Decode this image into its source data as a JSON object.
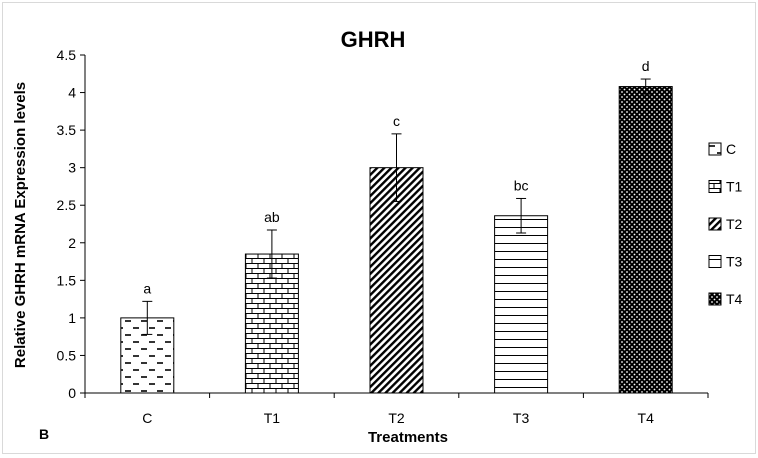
{
  "chart_data": {
    "type": "bar",
    "title": "GHRH",
    "xlabel": "Treatments",
    "ylabel": "Relative GHRH mRNA Expression levels",
    "panel_label": "B",
    "categories": [
      "C",
      "T1",
      "T2",
      "T3",
      "T4"
    ],
    "series": [
      {
        "name": "GHRH",
        "values": [
          1.0,
          1.85,
          3.0,
          2.36,
          4.08
        ],
        "errors": [
          0.22,
          0.32,
          0.45,
          0.23,
          0.1
        ],
        "significance_letters": [
          "a",
          "ab",
          "c",
          "bc",
          "d"
        ]
      }
    ],
    "legend": {
      "placement": "right",
      "entries": [
        "C",
        "T1",
        "T2",
        "T3",
        "T4"
      ]
    },
    "patterns": [
      "dashes",
      "bricks",
      "diagonal-stripes",
      "horizontal-stripes",
      "dots-on-black"
    ],
    "ylim": [
      0,
      4.5
    ],
    "yticks": [
      "0",
      "0.5",
      "1",
      "1.5",
      "2",
      "2.5",
      "3",
      "3.5",
      "4",
      "4.5"
    ],
    "grid": false
  }
}
